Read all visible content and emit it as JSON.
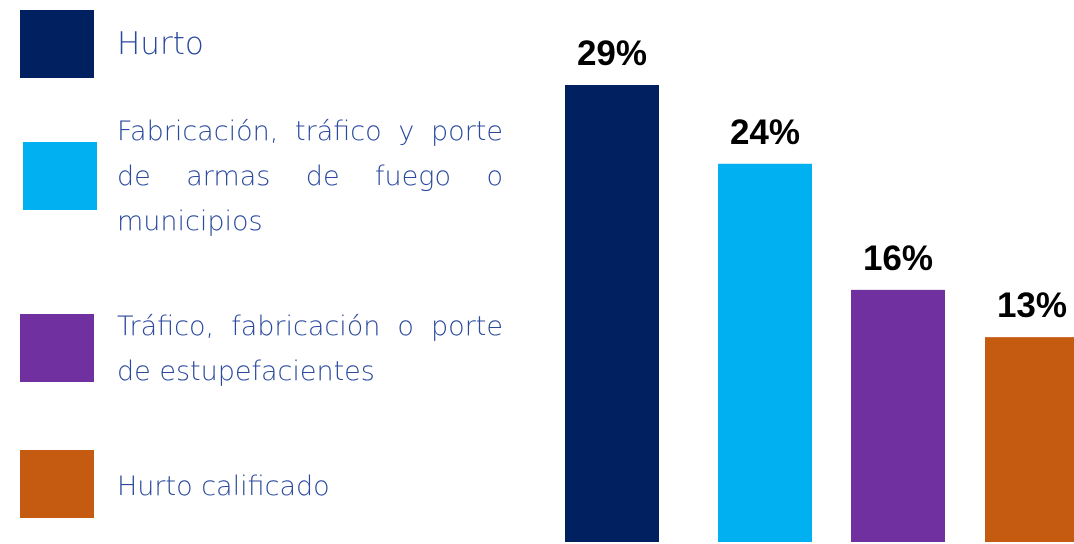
{
  "chart_data": {
    "type": "bar",
    "categories": [
      "Hurto",
      "Fabricación, tráfico y porte de armas de fuego o municipios",
      "Tráfico, fabricación o porte de estupefacientes",
      "Hurto calificado"
    ],
    "values": [
      29,
      24,
      16,
      13
    ],
    "value_labels": [
      "29%",
      "24%",
      "16%",
      "13%"
    ],
    "colors": [
      "#002060",
      "#00b0f0",
      "#7030a0",
      "#c55a11"
    ]
  }
}
